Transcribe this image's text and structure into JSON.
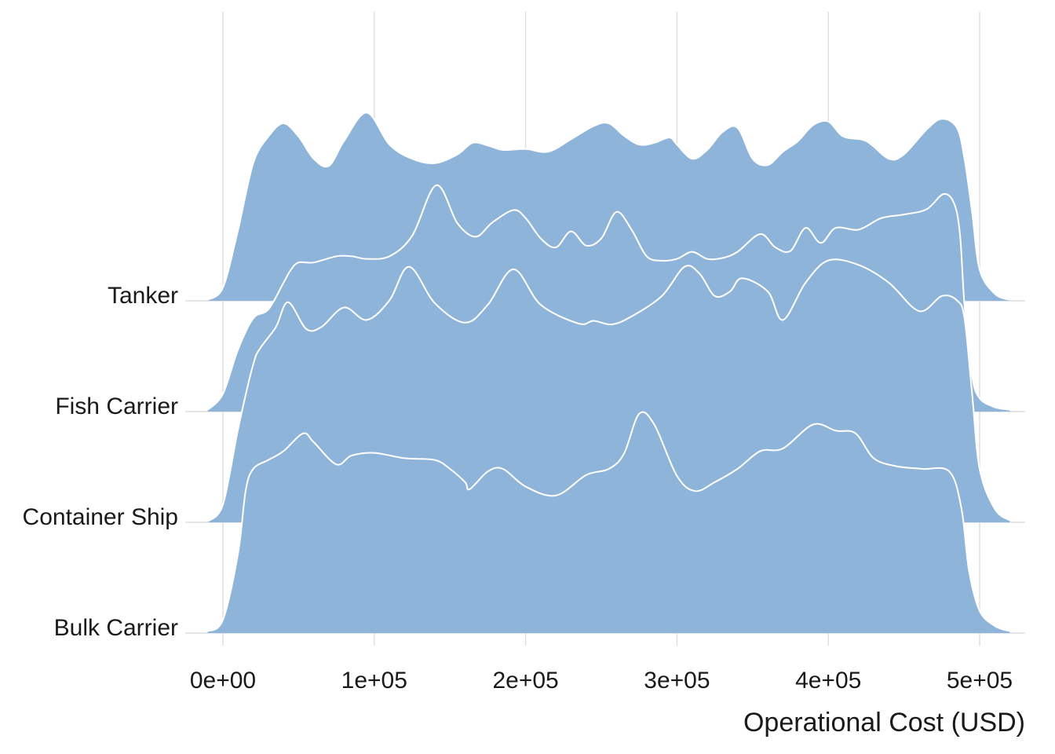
{
  "chart_data": {
    "type": "area",
    "subtype": "ridgeline-density",
    "xlabel": "Operational Cost (USD)",
    "ylabel": "",
    "xlim": [
      -12000,
      528000
    ],
    "grid": "vertical",
    "fill_color": "#8FB4DA",
    "outline_color": "#ffffff",
    "grid_color": "#dedede",
    "x_ticks": [
      {
        "value": 0,
        "label": "0e+00"
      },
      {
        "value": 100000,
        "label": "1e+05"
      },
      {
        "value": 200000,
        "label": "2e+05"
      },
      {
        "value": 300000,
        "label": "3e+05"
      },
      {
        "value": 400000,
        "label": "4e+05"
      },
      {
        "value": 500000,
        "label": "5e+05"
      }
    ],
    "categories": [
      "Bulk Carrier",
      "Container Ship",
      "Fish Carrier",
      "Tanker"
    ],
    "series": [
      {
        "name": "Bulk Carrier",
        "x": [
          -10000,
          0,
          10000,
          15000,
          20000,
          30000,
          40000,
          53000,
          60000,
          75000,
          85000,
          100000,
          120000,
          140000,
          150000,
          160000,
          163000,
          175000,
          185000,
          200000,
          220000,
          240000,
          255000,
          265000,
          275000,
          285000,
          300000,
          312000,
          325000,
          340000,
          355000,
          370000,
          390000,
          405000,
          418000,
          430000,
          445000,
          462000,
          480000,
          488000,
          493000,
          500000,
          510000,
          520000
        ],
        "y": [
          0.02,
          0.15,
          0.9,
          1.6,
          1.85,
          1.95,
          2.05,
          2.25,
          2.15,
          1.9,
          2.0,
          2.03,
          1.97,
          1.95,
          1.85,
          1.7,
          1.62,
          1.82,
          1.85,
          1.65,
          1.55,
          1.78,
          1.85,
          2.02,
          2.47,
          2.35,
          1.77,
          1.6,
          1.7,
          1.85,
          2.05,
          2.08,
          2.35,
          2.28,
          2.25,
          1.97,
          1.88,
          1.85,
          1.82,
          1.4,
          0.7,
          0.25,
          0.08,
          0.02
        ]
      },
      {
        "name": "Container Ship",
        "x": [
          -10000,
          0,
          10000,
          20000,
          25000,
          35000,
          43000,
          55000,
          65000,
          80000,
          95000,
          110000,
          123000,
          140000,
          160000,
          175000,
          192000,
          210000,
          235000,
          245000,
          257000,
          270000,
          290000,
          305000,
          315000,
          325000,
          335000,
          343000,
          360000,
          370000,
          385000,
          400000,
          420000,
          440000,
          460000,
          475000,
          485000,
          490000,
          495000,
          500000,
          510000,
          520000
        ],
        "y": [
          0.01,
          0.2,
          1.05,
          1.78,
          1.97,
          2.2,
          2.48,
          2.18,
          2.2,
          2.42,
          2.28,
          2.5,
          2.88,
          2.47,
          2.25,
          2.45,
          2.85,
          2.45,
          2.24,
          2.27,
          2.23,
          2.32,
          2.55,
          2.88,
          2.8,
          2.55,
          2.6,
          2.75,
          2.6,
          2.28,
          2.7,
          2.95,
          2.9,
          2.7,
          2.38,
          2.55,
          2.5,
          2.3,
          1.45,
          0.6,
          0.15,
          0.02
        ]
      },
      {
        "name": "Fish Carrier",
        "x": [
          -10000,
          0,
          10000,
          20000,
          30000,
          40000,
          45000,
          50000,
          60000,
          75000,
          85000,
          95000,
          110000,
          125000,
          141000,
          155000,
          167000,
          178000,
          192000,
          200000,
          210000,
          220000,
          230000,
          240000,
          250000,
          260000,
          270000,
          280000,
          290000,
          300000,
          310000,
          320000,
          330000,
          340000,
          355000,
          365000,
          375000,
          385000,
          395000,
          405000,
          420000,
          435000,
          450000,
          465000,
          476000,
          483000,
          487000,
          490000,
          495000,
          500000,
          510000,
          520000
        ],
        "y": [
          0.02,
          0.2,
          0.7,
          1.05,
          1.15,
          1.45,
          1.6,
          1.68,
          1.68,
          1.75,
          1.75,
          1.72,
          1.75,
          1.98,
          2.55,
          2.12,
          1.97,
          2.13,
          2.27,
          2.18,
          1.95,
          1.85,
          2.03,
          1.87,
          1.95,
          2.25,
          2.05,
          1.75,
          1.7,
          1.72,
          1.8,
          1.72,
          1.73,
          1.8,
          2.0,
          1.85,
          1.81,
          2.07,
          1.9,
          2.07,
          2.05,
          2.18,
          2.22,
          2.28,
          2.45,
          2.35,
          2.0,
          1.2,
          0.4,
          0.15,
          0.05,
          0.02
        ]
      },
      {
        "name": "Tanker",
        "x": [
          -10000,
          0,
          10000,
          20000,
          30000,
          40000,
          50000,
          60000,
          70000,
          80000,
          95000,
          110000,
          125000,
          140000,
          155000,
          165000,
          175000,
          185000,
          200000,
          215000,
          230000,
          245000,
          255000,
          265000,
          275000,
          285000,
          295000,
          300000,
          310000,
          320000,
          330000,
          340000,
          350000,
          360000,
          370000,
          380000,
          390000,
          400000,
          410000,
          425000,
          440000,
          450000,
          465000,
          475000,
          485000,
          490000,
          495000,
          500000,
          510000,
          520000
        ],
        "y": [
          0.01,
          0.15,
          0.8,
          1.55,
          1.85,
          2.0,
          1.85,
          1.6,
          1.52,
          1.8,
          2.12,
          1.76,
          1.6,
          1.55,
          1.65,
          1.78,
          1.75,
          1.7,
          1.71,
          1.68,
          1.82,
          1.97,
          2.0,
          1.86,
          1.76,
          1.78,
          1.84,
          1.76,
          1.6,
          1.7,
          1.9,
          1.95,
          1.6,
          1.53,
          1.68,
          1.8,
          1.98,
          2.02,
          1.85,
          1.8,
          1.6,
          1.65,
          1.93,
          2.05,
          1.95,
          1.6,
          1.0,
          0.35,
          0.08,
          0.01
        ]
      }
    ]
  }
}
